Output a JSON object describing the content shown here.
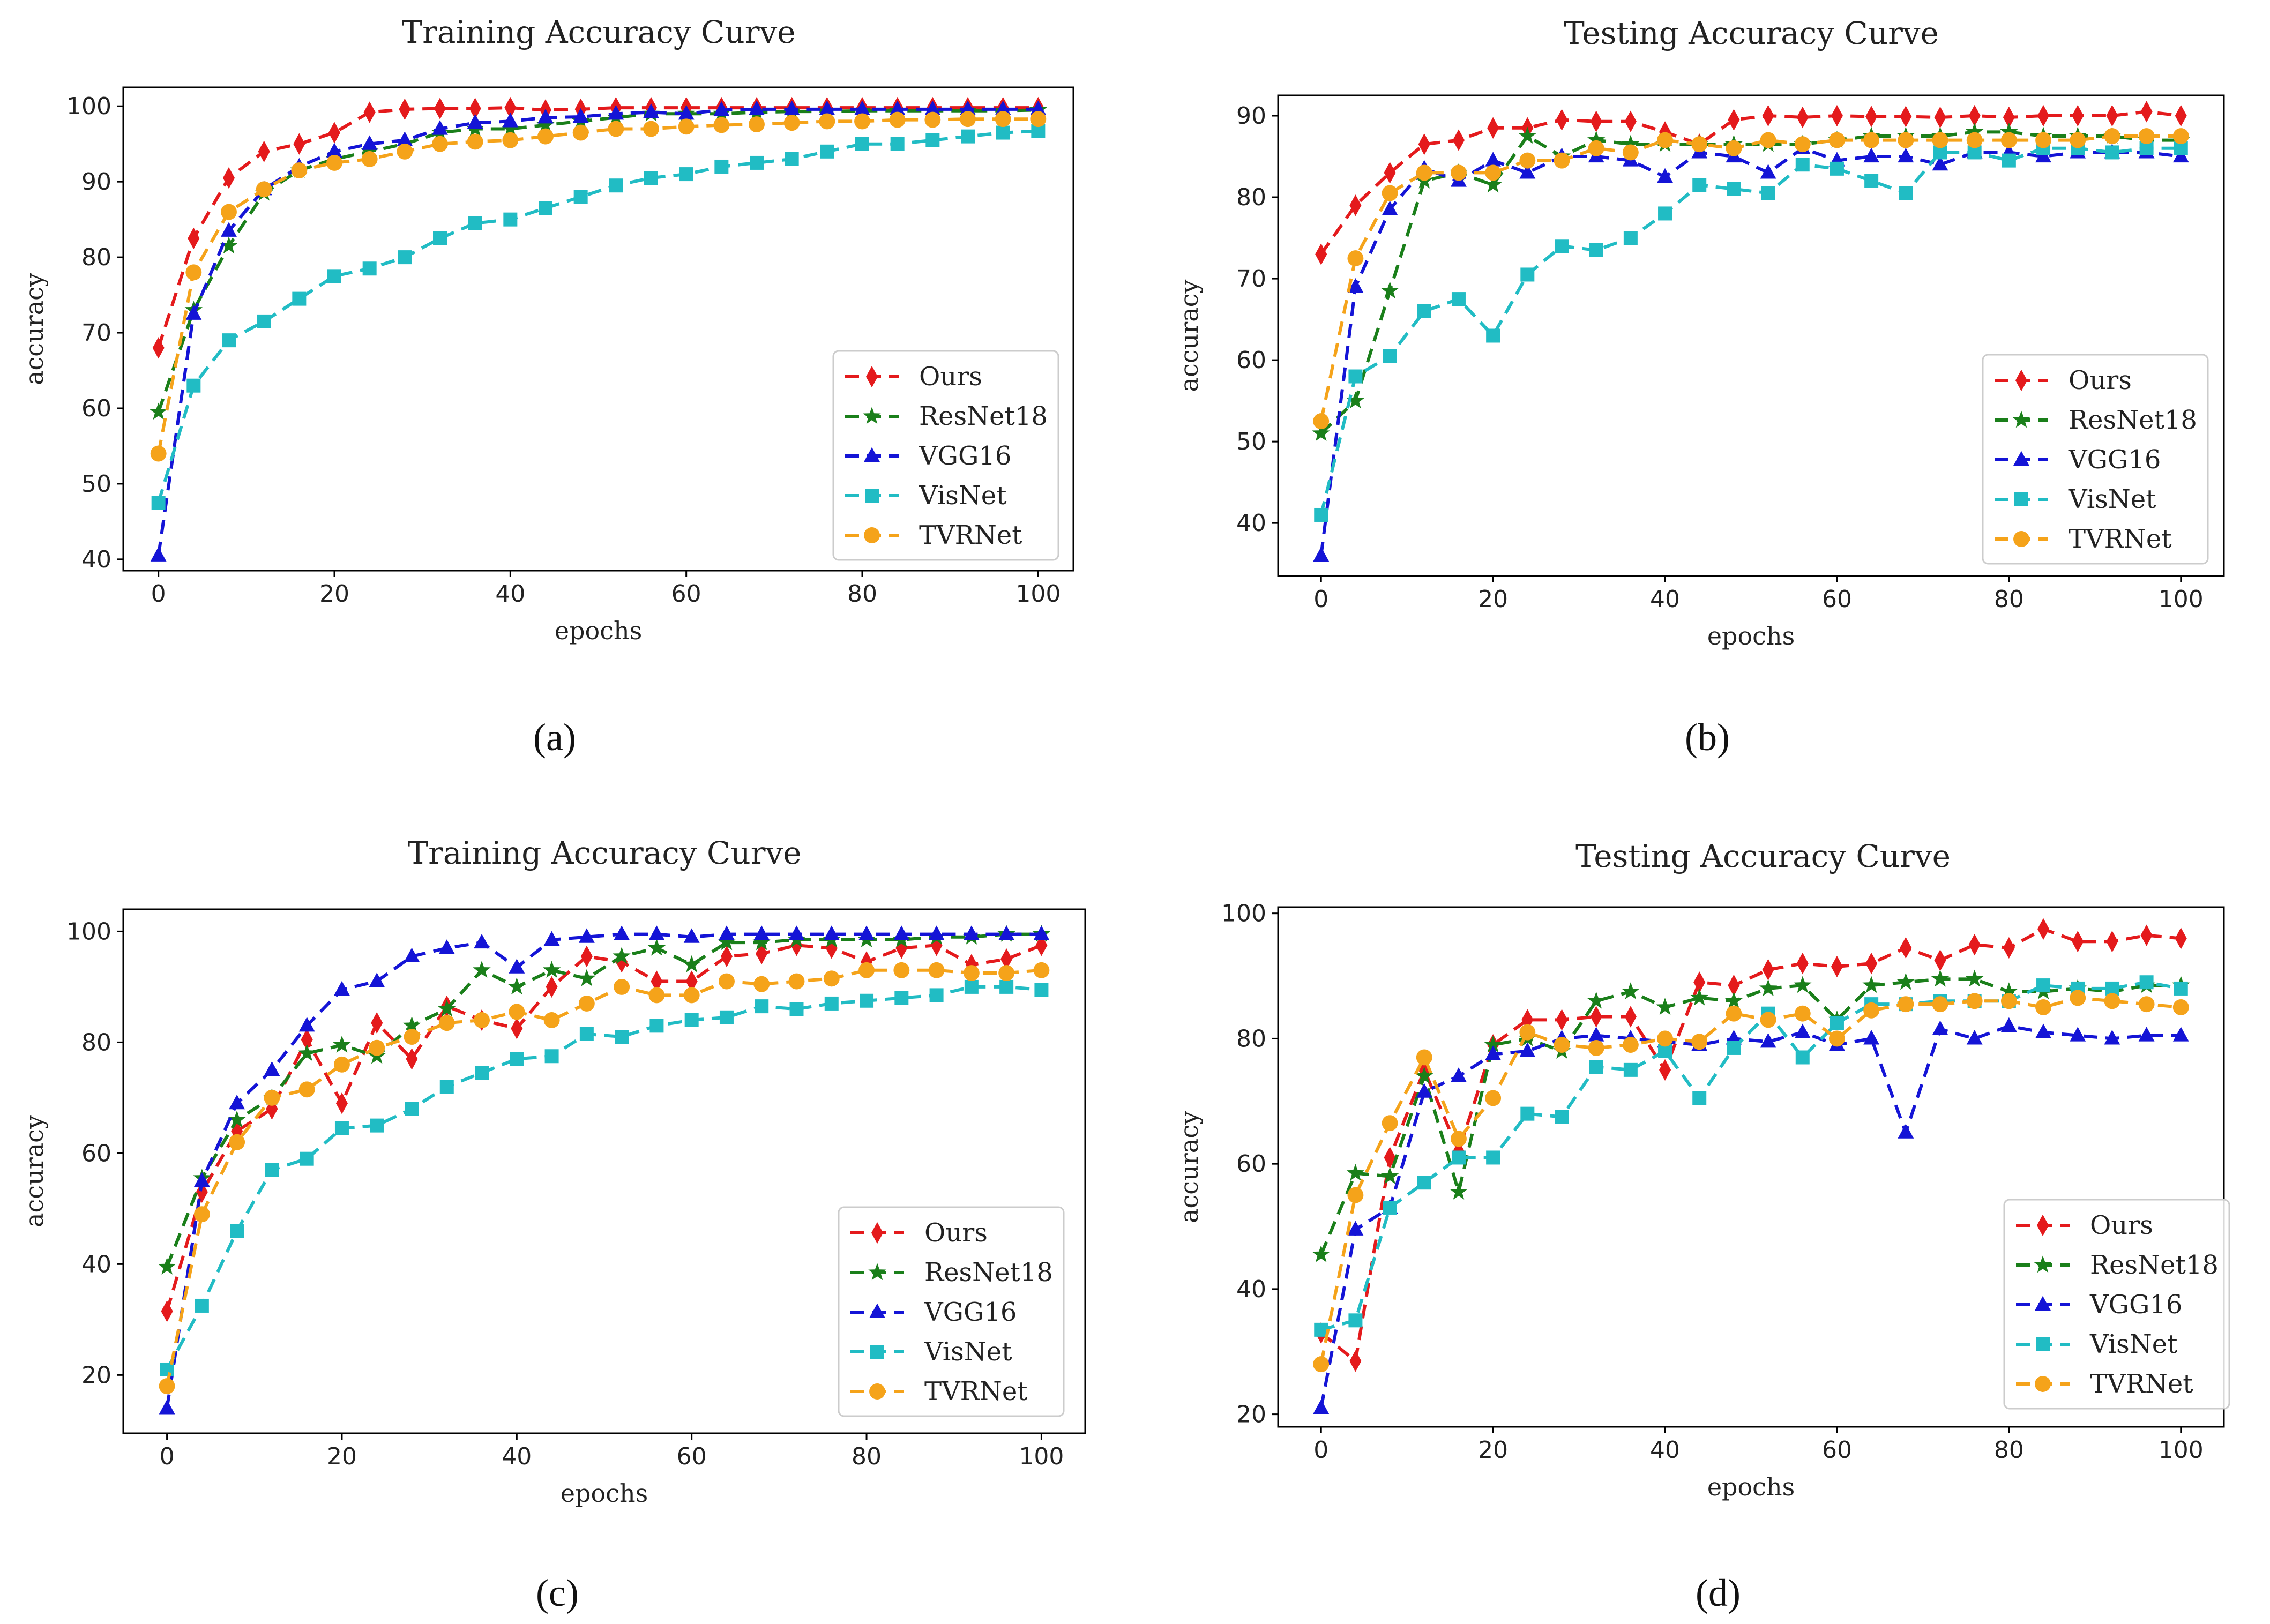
{
  "figure": {
    "captions": [
      "(a)",
      "(b)",
      "(c)",
      "(d)"
    ]
  },
  "chart_data": [
    {
      "type": "line",
      "title": "Training Accuracy Curve",
      "xlabel": "epochs",
      "ylabel": "accuracy",
      "xlim": [
        -4,
        104
      ],
      "ylim": [
        38.5,
        102.5
      ],
      "xticks": [
        0,
        20,
        40,
        60,
        80,
        100
      ],
      "yticks": [
        40,
        50,
        60,
        70,
        80,
        90,
        100
      ],
      "legend": "lower-right",
      "x": [
        0,
        4,
        8,
        12,
        16,
        20,
        24,
        28,
        32,
        36,
        40,
        44,
        48,
        52,
        56,
        60,
        64,
        68,
        72,
        76,
        80,
        84,
        88,
        92,
        96,
        100
      ],
      "series": [
        {
          "name": "Ours",
          "color": "#e41a1c",
          "marker": "diamond",
          "values": [
            68,
            82.5,
            90.5,
            94,
            95,
            96.5,
            99.2,
            99.6,
            99.7,
            99.7,
            99.8,
            99.5,
            99.6,
            99.8,
            99.8,
            99.8,
            99.8,
            99.8,
            99.8,
            99.8,
            99.8,
            99.8,
            99.8,
            99.8,
            99.8,
            99.8
          ]
        },
        {
          "name": "ResNet18",
          "color": "#1a7f1a",
          "marker": "star",
          "values": [
            59.5,
            73,
            81.5,
            88.5,
            91.5,
            93,
            94,
            95,
            96.5,
            97,
            97,
            97.5,
            98,
            98.5,
            99,
            99,
            99,
            99.2,
            99.3,
            99.3,
            99.4,
            99.4,
            99.4,
            99.4,
            99.4,
            99.5
          ]
        },
        {
          "name": "VGG16",
          "color": "#1414d6",
          "marker": "triangle",
          "values": [
            40.5,
            72.5,
            83.5,
            89,
            92,
            94,
            95,
            95.5,
            97,
            97.8,
            98,
            98.5,
            98.6,
            99,
            99.2,
            99,
            99.5,
            99.6,
            99.6,
            99.6,
            99.6,
            99.6,
            99.6,
            99.6,
            99.6,
            99.6
          ]
        },
        {
          "name": "VisNet",
          "color": "#21bcc4",
          "marker": "square",
          "values": [
            47.5,
            63,
            69,
            71.5,
            74.5,
            77.5,
            78.5,
            80,
            82.5,
            84.5,
            85,
            86.5,
            88,
            89.5,
            90.5,
            91,
            92,
            92.5,
            93,
            94,
            95,
            95,
            95.5,
            96,
            96.5,
            96.7
          ]
        },
        {
          "name": "TVRNet",
          "color": "#f5a31a",
          "marker": "circle",
          "values": [
            54,
            78,
            86,
            89,
            91.5,
            92.5,
            93,
            94,
            95,
            95.3,
            95.5,
            96,
            96.5,
            97,
            97,
            97.3,
            97.5,
            97.6,
            97.8,
            98,
            98,
            98.2,
            98.2,
            98.3,
            98.3,
            98.3
          ]
        }
      ]
    },
    {
      "type": "line",
      "title": "Testing Accuracy Curve",
      "xlabel": "epochs",
      "ylabel": "accuracy",
      "xlim": [
        -5,
        105
      ],
      "ylim": [
        33.5,
        92.5
      ],
      "xticks": [
        0,
        20,
        40,
        60,
        80,
        100
      ],
      "yticks": [
        40,
        50,
        60,
        70,
        80,
        90
      ],
      "legend": "lower-right",
      "x": [
        0,
        4,
        8,
        12,
        16,
        20,
        24,
        28,
        32,
        36,
        40,
        44,
        48,
        52,
        56,
        60,
        64,
        68,
        72,
        76,
        80,
        84,
        88,
        92,
        96,
        100
      ],
      "series": [
        {
          "name": "Ours",
          "color": "#e41a1c",
          "marker": "diamond",
          "values": [
            73,
            79,
            83,
            86.5,
            87,
            88.5,
            88.5,
            89.5,
            89.3,
            89.3,
            88,
            86.5,
            89.5,
            90,
            89.8,
            90,
            89.9,
            89.9,
            89.8,
            90,
            89.8,
            90,
            90,
            90,
            90.5,
            90
          ]
        },
        {
          "name": "ResNet18",
          "color": "#1a7f1a",
          "marker": "star",
          "values": [
            51,
            55,
            68.5,
            82,
            83,
            81.5,
            87.5,
            85,
            87,
            86.5,
            86.5,
            86.5,
            86.5,
            86.5,
            86.5,
            87,
            87.5,
            87.5,
            87.5,
            88,
            88,
            87.5,
            87.5,
            87.5,
            87,
            87
          ]
        },
        {
          "name": "VGG16",
          "color": "#1414d6",
          "marker": "triangle",
          "values": [
            36,
            69,
            78.5,
            83.5,
            82,
            84.5,
            83,
            85,
            85,
            84.5,
            82.5,
            85.5,
            85,
            83,
            86,
            84.5,
            85,
            85,
            84,
            85.5,
            85.5,
            85,
            85.5,
            85.5,
            85.5,
            85
          ]
        },
        {
          "name": "VisNet",
          "color": "#21bcc4",
          "marker": "square",
          "values": [
            41,
            58,
            60.5,
            66,
            67.5,
            63,
            70.5,
            74,
            73.5,
            75,
            78,
            81.5,
            81,
            80.5,
            84,
            83.5,
            82,
            80.5,
            85.5,
            85.5,
            84.5,
            86,
            86,
            85.5,
            86,
            86
          ]
        },
        {
          "name": "TVRNet",
          "color": "#f5a31a",
          "marker": "circle",
          "values": [
            52.5,
            72.5,
            80.5,
            83,
            83,
            83,
            84.5,
            84.5,
            86,
            85.5,
            87,
            86.5,
            86,
            87,
            86.5,
            87,
            87,
            87,
            87,
            87,
            87,
            87,
            87,
            87.5,
            87.5,
            87.5
          ]
        }
      ]
    },
    {
      "type": "line",
      "title": "Training Accuracy Curve",
      "xlabel": "epochs",
      "ylabel": "accuracy",
      "xlim": [
        -5,
        105
      ],
      "ylim": [
        9.5,
        104
      ],
      "xticks": [
        0,
        20,
        40,
        60,
        80,
        100
      ],
      "yticks": [
        20,
        40,
        60,
        80,
        100
      ],
      "legend": "lower-right",
      "x": [
        0,
        4,
        8,
        12,
        16,
        20,
        24,
        28,
        32,
        36,
        40,
        44,
        48,
        52,
        56,
        60,
        64,
        68,
        72,
        76,
        80,
        84,
        88,
        92,
        96,
        100
      ],
      "series": [
        {
          "name": "Ours",
          "color": "#e41a1c",
          "marker": "diamond",
          "values": [
            31.5,
            53,
            64,
            68,
            80.5,
            69,
            83.5,
            77,
            86.5,
            84,
            82.5,
            90,
            95.5,
            94.5,
            91,
            91,
            95.5,
            96,
            97.5,
            97,
            94.5,
            97,
            97.5,
            94,
            95,
            97.5
          ]
        },
        {
          "name": "ResNet18",
          "color": "#1a7f1a",
          "marker": "star",
          "values": [
            39.5,
            55.5,
            66,
            70,
            78,
            79.5,
            77.5,
            83,
            86,
            93,
            90,
            93,
            91.5,
            95.5,
            97,
            94,
            98,
            98,
            98.5,
            98.5,
            98.5,
            98.5,
            99,
            99,
            99.5,
            99.5
          ]
        },
        {
          "name": "VGG16",
          "color": "#1414d6",
          "marker": "triangle",
          "values": [
            14,
            55,
            69,
            75,
            83,
            89.5,
            91,
            95.5,
            97,
            98,
            93.5,
            98.5,
            99,
            99.5,
            99.5,
            99,
            99.5,
            99.5,
            99.5,
            99.5,
            99.5,
            99.5,
            99.5,
            99.5,
            99.5,
            99.5
          ]
        },
        {
          "name": "VisNet",
          "color": "#21bcc4",
          "marker": "square",
          "values": [
            21,
            32.5,
            46,
            57,
            59,
            64.5,
            65,
            68,
            72,
            74.5,
            77,
            77.5,
            81.5,
            81,
            83,
            84,
            84.5,
            86.5,
            86,
            87,
            87.5,
            88,
            88.5,
            90,
            90,
            89.5
          ]
        },
        {
          "name": "TVRNet",
          "color": "#f5a31a",
          "marker": "circle",
          "values": [
            18,
            49,
            62,
            70,
            71.5,
            76,
            79,
            81,
            83.5,
            84,
            85.5,
            84,
            87,
            90,
            88.5,
            88.5,
            91,
            90.5,
            91,
            91.5,
            93,
            93,
            93,
            92.5,
            92.5,
            93
          ]
        }
      ]
    },
    {
      "type": "line",
      "title": "Testing Accuracy Curve",
      "xlabel": "epochs",
      "ylabel": "accuracy",
      "xlim": [
        -5,
        105
      ],
      "ylim": [
        18,
        101
      ],
      "xticks": [
        0,
        20,
        40,
        60,
        80,
        100
      ],
      "yticks": [
        20,
        40,
        60,
        80,
        100
      ],
      "legend": "lower-right",
      "x": [
        0,
        4,
        8,
        12,
        16,
        20,
        24,
        28,
        32,
        36,
        40,
        44,
        48,
        52,
        56,
        60,
        64,
        68,
        72,
        76,
        80,
        84,
        88,
        92,
        96,
        100
      ],
      "series": [
        {
          "name": "Ours",
          "color": "#e41a1c",
          "marker": "diamond",
          "values": [
            33,
            28.5,
            61,
            75,
            62,
            79,
            83,
            83,
            83.5,
            83.5,
            75,
            89,
            88.5,
            91,
            92,
            91.5,
            92,
            94.5,
            92.5,
            95,
            94.5,
            97.5,
            95.5,
            95.5,
            96.5,
            96
          ]
        },
        {
          "name": "ResNet18",
          "color": "#1a7f1a",
          "marker": "star",
          "values": [
            45.5,
            58.5,
            58,
            74,
            55.5,
            79,
            80,
            78,
            86,
            87.5,
            85,
            86.5,
            86,
            88,
            88.5,
            83,
            88.5,
            89,
            89.5,
            89.5,
            87.5,
            87.5,
            88,
            87.5,
            88.5,
            88.5
          ]
        },
        {
          "name": "VGG16",
          "color": "#1414d6",
          "marker": "triangle",
          "values": [
            21,
            49.5,
            53,
            71.5,
            74,
            77.5,
            78,
            80,
            80.5,
            80,
            79.5,
            79,
            80,
            79.5,
            81,
            79,
            80,
            65,
            81.5,
            80,
            82,
            81,
            80.5,
            80,
            80.5,
            80.5
          ]
        },
        {
          "name": "VisNet",
          "color": "#21bcc4",
          "marker": "square",
          "values": [
            33.5,
            35,
            53,
            57,
            61,
            61,
            68,
            67.5,
            75.5,
            75,
            78,
            70.5,
            78.5,
            84,
            77,
            82.5,
            85.5,
            85.5,
            86,
            86,
            86,
            88.5,
            88,
            88,
            89,
            88
          ]
        },
        {
          "name": "TVRNet",
          "color": "#f5a31a",
          "marker": "circle",
          "values": [
            28,
            55,
            66.5,
            77,
            64,
            70.5,
            81,
            79,
            78.5,
            79,
            80,
            79.5,
            84,
            83,
            84,
            80,
            84.5,
            85.5,
            85.5,
            86,
            86,
            85,
            86.5,
            86,
            85.5,
            85
          ]
        }
      ]
    }
  ]
}
